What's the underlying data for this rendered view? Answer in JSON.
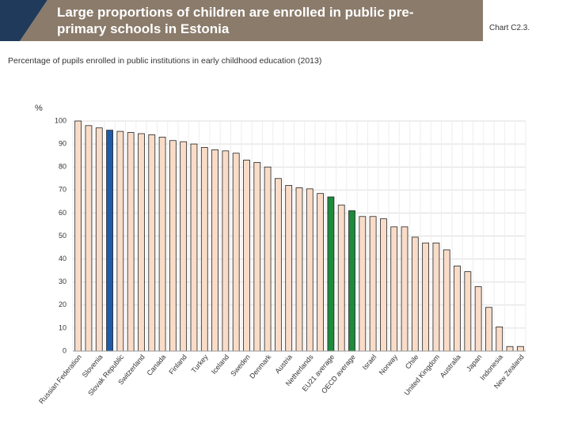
{
  "header": {
    "title": "Large proportions of children are enrolled in public pre-primary schools in Estonia",
    "chart_id": "Chart C2.3."
  },
  "chart_data": {
    "type": "bar",
    "subtitle": "Percentage of pupils enrolled in public institutions in early childhood education (2013)",
    "y_label": "%",
    "categories": [
      "Russian Federation",
      null,
      "Slovenia",
      null,
      "Slovak Republic",
      null,
      "Switzerland",
      null,
      "Canada",
      null,
      "Finland",
      null,
      "Turkey",
      null,
      "Iceland",
      null,
      "Sweden",
      null,
      "Denmark",
      null,
      "Austria",
      null,
      "Netherlands",
      null,
      "EU21 average",
      null,
      "OECD average",
      null,
      "Israel",
      null,
      "Norway",
      null,
      "Chile",
      null,
      "United Kingdom",
      null,
      "Australia",
      null,
      "Japan",
      null,
      "Indonesia",
      null,
      "New Zealand"
    ],
    "values": [
      100,
      98,
      97,
      96,
      95.5,
      95,
      94.5,
      94,
      93,
      91.5,
      91,
      90,
      88.5,
      87.5,
      87,
      86,
      83,
      82,
      80,
      75,
      72,
      71,
      70.5,
      68.5,
      67,
      63.5,
      61,
      58.5,
      58.5,
      57.5,
      54,
      54,
      49.5,
      47,
      47,
      44,
      37,
      34.5,
      28,
      19,
      10.5,
      2,
      2
    ],
    "color": "#f9dcc8",
    "colors": [
      "#f9dcc8",
      "#f9dcc8",
      "#f9dcc8",
      "#1f5ba8",
      "#f9dcc8",
      "#f9dcc8",
      "#f9dcc8",
      "#f9dcc8",
      "#f9dcc8",
      "#f9dcc8",
      "#f9dcc8",
      "#f9dcc8",
      "#f9dcc8",
      "#f9dcc8",
      "#f9dcc8",
      "#f9dcc8",
      "#f9dcc8",
      "#f9dcc8",
      "#f9dcc8",
      "#f9dcc8",
      "#f9dcc8",
      "#f9dcc8",
      "#f9dcc8",
      "#f9dcc8",
      "#1e8a3c",
      "#f9dcc8",
      "#1e8a3c",
      "#f9dcc8",
      "#f9dcc8",
      "#f9dcc8",
      "#f9dcc8",
      "#f9dcc8",
      "#f9dcc8",
      "#f9dcc8",
      "#f9dcc8",
      "#f9dcc8",
      "#f9dcc8",
      "#f9dcc8",
      "#f9dcc8",
      "#f9dcc8",
      "#f9dcc8",
      "#f9dcc8",
      "#f9dcc8"
    ],
    "ylim": [
      0,
      100
    ],
    "yticks": [
      0,
      10,
      20,
      30,
      40,
      50,
      60,
      70,
      80,
      90,
      100
    ],
    "grid": true
  }
}
